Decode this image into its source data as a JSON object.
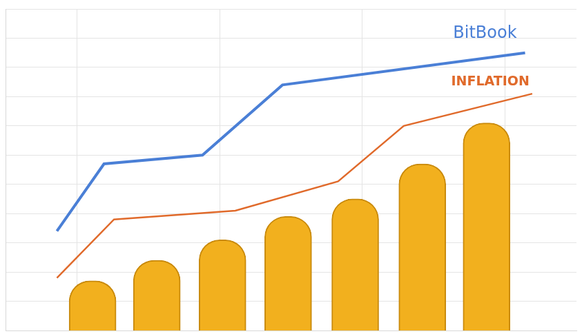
{
  "chart_data": {
    "type": "line",
    "series": [
      {
        "name": "BitBook",
        "type": "line",
        "color": "#4a7fd6",
        "x": [
          0.36,
          0.69,
          1.38,
          1.94,
          3.64
        ],
        "values": [
          2.4,
          4.7,
          5.0,
          7.4,
          8.5
        ]
      },
      {
        "name": "INFLATION",
        "type": "line",
        "color": "#e06a2b",
        "x": [
          0.36,
          0.76,
          1.61,
          2.33,
          2.79,
          3.69
        ],
        "values": [
          0.8,
          2.8,
          3.1,
          4.1,
          6.0,
          7.1
        ]
      },
      {
        "type": "bar",
        "color": "#f2b01e",
        "x": [
          0.61,
          1.06,
          1.52,
          1.98,
          2.45,
          2.92,
          3.37
        ],
        "values": [
          0.7,
          1.4,
          2.1,
          2.9,
          3.5,
          4.7,
          6.1
        ]
      }
    ],
    "xlim": [
      0,
      4
    ],
    "xticks": [
      1,
      2,
      3
    ],
    "ylim": [
      -1,
      10
    ],
    "yticks": [
      0,
      1,
      2,
      3,
      4,
      5,
      6,
      7,
      8,
      9,
      10
    ],
    "grid": true,
    "tick_labels": false
  }
}
